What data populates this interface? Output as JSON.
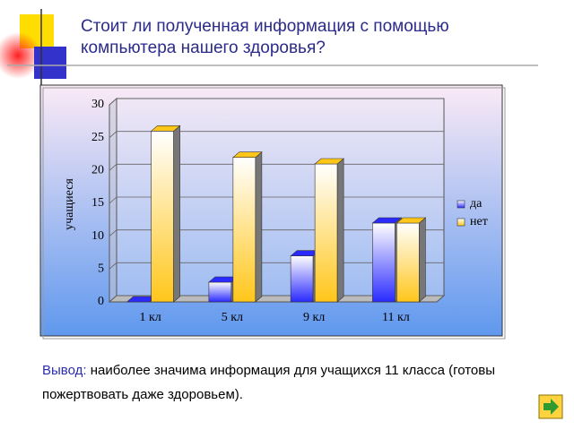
{
  "chart_data": {
    "type": "bar",
    "title": "Стоит ли полученная информация с помощью компьютера нашего здоровья?",
    "y_label": "учащиеся",
    "categories": [
      "1 кл",
      "5 кл",
      "9 кл",
      "11 кл"
    ],
    "series": [
      {
        "name": "да",
        "color": "#2a2aff",
        "values": [
          0,
          3,
          7,
          12
        ]
      },
      {
        "name": "нет",
        "color": "#ffc61a",
        "values": [
          26,
          22,
          21,
          12
        ]
      }
    ],
    "ylim": [
      0,
      30
    ],
    "yticks": [
      0,
      5,
      10,
      15,
      20,
      25,
      30
    ],
    "grid": true,
    "legend": "right"
  },
  "conclusion": {
    "label": "Вывод:",
    "text": "наиболее значима информация для учащихся 11 класса (готовы пожертвовать даже здоровьем)."
  }
}
